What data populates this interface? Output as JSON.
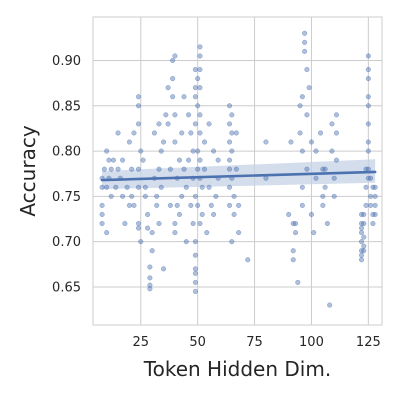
{
  "chart_data": {
    "type": "scatter",
    "xlabel": "Token Hidden Dim.",
    "ylabel": "Accuracy",
    "xlim": [
      4,
      131
    ],
    "ylim": [
      0.608,
      0.948
    ],
    "xticks": [
      25,
      50,
      75,
      100,
      125
    ],
    "yticks": [
      0.65,
      0.7,
      0.75,
      0.8,
      0.85,
      0.9
    ],
    "grid": true,
    "colors": {
      "points": "#4c72b0",
      "line": "#4c72b0",
      "band": "#c5d2e6",
      "grid": "#cccccc"
    },
    "regression": {
      "x": [
        8,
        128
      ],
      "y": [
        0.768,
        0.777
      ],
      "ci_low": [
        0.758,
        0.765
      ],
      "ci_high": [
        0.778,
        0.791
      ]
    },
    "points": [
      [
        8,
        0.73
      ],
      [
        8,
        0.72
      ],
      [
        8,
        0.76
      ],
      [
        8,
        0.77
      ],
      [
        8,
        0.74
      ],
      [
        9,
        0.78
      ],
      [
        10,
        0.8
      ],
      [
        10,
        0.71
      ],
      [
        10,
        0.76
      ],
      [
        11,
        0.79
      ],
      [
        11,
        0.77
      ],
      [
        12,
        0.75
      ],
      [
        12,
        0.78
      ],
      [
        13,
        0.79
      ],
      [
        14,
        0.76
      ],
      [
        15,
        0.82
      ],
      [
        15,
        0.78
      ],
      [
        16,
        0.77
      ],
      [
        17,
        0.75
      ],
      [
        17,
        0.79
      ],
      [
        18,
        0.72
      ],
      [
        19,
        0.76
      ],
      [
        20,
        0.74
      ],
      [
        20,
        0.81
      ],
      [
        21,
        0.78
      ],
      [
        21,
        0.75
      ],
      [
        22,
        0.82
      ],
      [
        22,
        0.74
      ],
      [
        24,
        0.86
      ],
      [
        24,
        0.85
      ],
      [
        24,
        0.83
      ],
      [
        24,
        0.78
      ],
      [
        24,
        0.76
      ],
      [
        24,
        0.72
      ],
      [
        24,
        0.715
      ],
      [
        25,
        0.7
      ],
      [
        25,
        0.8
      ],
      [
        26,
        0.79
      ],
      [
        27,
        0.76
      ],
      [
        27,
        0.75
      ],
      [
        28,
        0.73
      ],
      [
        28,
        0.715
      ],
      [
        29,
        0.672
      ],
      [
        29,
        0.66
      ],
      [
        29,
        0.652
      ],
      [
        29,
        0.648
      ],
      [
        30,
        0.69
      ],
      [
        30,
        0.71
      ],
      [
        31,
        0.82
      ],
      [
        31,
        0.77
      ],
      [
        32,
        0.75
      ],
      [
        32,
        0.74
      ],
      [
        33,
        0.83
      ],
      [
        33,
        0.78
      ],
      [
        33,
        0.72
      ],
      [
        34,
        0.8
      ],
      [
        34,
        0.76
      ],
      [
        35,
        0.67
      ],
      [
        35,
        0.81
      ],
      [
        36,
        0.84
      ],
      [
        37,
        0.87
      ],
      [
        37,
        0.83
      ],
      [
        38,
        0.78
      ],
      [
        38,
        0.74
      ],
      [
        39,
        0.9
      ],
      [
        39,
        0.88
      ],
      [
        39,
        0.86
      ],
      [
        40,
        0.905
      ],
      [
        40,
        0.84
      ],
      [
        40,
        0.81
      ],
      [
        40,
        0.72
      ],
      [
        40,
        0.71
      ],
      [
        41,
        0.77
      ],
      [
        41,
        0.74
      ],
      [
        42,
        0.79
      ],
      [
        42,
        0.73
      ],
      [
        43,
        0.82
      ],
      [
        43,
        0.75
      ],
      [
        44,
        0.86
      ],
      [
        44,
        0.78
      ],
      [
        45,
        0.7
      ],
      [
        45,
        0.76
      ],
      [
        46,
        0.84
      ],
      [
        46,
        0.79
      ],
      [
        47,
        0.82
      ],
      [
        47,
        0.74
      ],
      [
        48,
        0.8
      ],
      [
        48,
        0.77
      ],
      [
        48,
        0.72
      ],
      [
        49,
        0.89
      ],
      [
        49,
        0.87
      ],
      [
        49,
        0.86
      ],
      [
        49,
        0.83
      ],
      [
        49,
        0.75
      ],
      [
        49,
        0.7
      ],
      [
        49,
        0.685
      ],
      [
        49,
        0.67
      ],
      [
        49,
        0.665
      ],
      [
        49,
        0.655
      ],
      [
        49,
        0.645
      ],
      [
        50,
        0.88
      ],
      [
        50,
        0.85
      ],
      [
        50,
        0.8
      ],
      [
        50,
        0.78
      ],
      [
        50,
        0.74
      ],
      [
        51,
        0.915
      ],
      [
        51,
        0.905
      ],
      [
        51,
        0.89
      ],
      [
        51,
        0.87
      ],
      [
        51,
        0.84
      ],
      [
        51,
        0.82
      ],
      [
        51,
        0.79
      ],
      [
        51,
        0.77
      ],
      [
        51,
        0.72
      ],
      [
        52,
        0.76
      ],
      [
        52,
        0.73
      ],
      [
        53,
        0.81
      ],
      [
        53,
        0.78
      ],
      [
        54,
        0.71
      ],
      [
        55,
        0.83
      ],
      [
        55,
        0.76
      ],
      [
        56,
        0.74
      ],
      [
        57,
        0.8
      ],
      [
        57,
        0.73
      ],
      [
        58,
        0.75
      ],
      [
        59,
        0.79
      ],
      [
        59,
        0.77
      ],
      [
        64,
        0.85
      ],
      [
        64,
        0.83
      ],
      [
        64,
        0.81
      ],
      [
        64,
        0.79
      ],
      [
        64,
        0.78
      ],
      [
        64,
        0.76
      ],
      [
        64,
        0.74
      ],
      [
        65,
        0.84
      ],
      [
        65,
        0.82
      ],
      [
        65,
        0.8
      ],
      [
        65,
        0.77
      ],
      [
        65,
        0.7
      ],
      [
        66,
        0.75
      ],
      [
        66,
        0.73
      ],
      [
        67,
        0.82
      ],
      [
        67,
        0.78
      ],
      [
        68,
        0.74
      ],
      [
        68,
        0.71
      ],
      [
        72,
        0.68
      ],
      [
        80,
        0.81
      ],
      [
        80,
        0.77
      ],
      [
        90,
        0.73
      ],
      [
        91,
        0.81
      ],
      [
        92,
        0.72
      ],
      [
        92,
        0.69
      ],
      [
        92,
        0.68
      ],
      [
        93,
        0.72
      ],
      [
        93,
        0.71
      ],
      [
        94,
        0.655
      ],
      [
        95,
        0.85
      ],
      [
        95,
        0.82
      ],
      [
        96,
        0.86
      ],
      [
        96,
        0.8
      ],
      [
        96,
        0.76
      ],
      [
        96,
        0.74
      ],
      [
        97,
        0.93
      ],
      [
        97,
        0.92
      ],
      [
        97,
        0.91
      ],
      [
        98,
        0.89
      ],
      [
        98,
        0.84
      ],
      [
        98,
        0.78
      ],
      [
        99,
        0.87
      ],
      [
        100,
        0.81
      ],
      [
        100,
        0.73
      ],
      [
        101,
        0.71
      ],
      [
        102,
        0.8
      ],
      [
        102,
        0.77
      ],
      [
        104,
        0.82
      ],
      [
        105,
        0.78
      ],
      [
        105,
        0.75
      ],
      [
        105,
        0.74
      ],
      [
        106,
        0.78
      ],
      [
        106,
        0.76
      ],
      [
        107,
        0.72
      ],
      [
        108,
        0.63
      ],
      [
        109,
        0.83
      ],
      [
        109,
        0.8
      ],
      [
        110,
        0.77
      ],
      [
        110,
        0.75
      ],
      [
        111,
        0.84
      ],
      [
        111,
        0.82
      ],
      [
        111,
        0.79
      ],
      [
        122,
        0.73
      ],
      [
        122,
        0.72
      ],
      [
        122,
        0.715
      ],
      [
        122,
        0.71
      ],
      [
        122,
        0.7
      ],
      [
        122,
        0.69
      ],
      [
        122,
        0.685
      ],
      [
        122,
        0.68
      ],
      [
        123,
        0.73
      ],
      [
        123,
        0.72
      ],
      [
        123,
        0.705
      ],
      [
        123,
        0.695
      ],
      [
        123,
        0.69
      ],
      [
        124,
        0.78
      ],
      [
        124,
        0.76
      ],
      [
        124,
        0.74
      ],
      [
        125,
        0.905
      ],
      [
        125,
        0.89
      ],
      [
        125,
        0.88
      ],
      [
        125,
        0.86
      ],
      [
        125,
        0.85
      ],
      [
        125,
        0.83
      ],
      [
        125,
        0.81
      ],
      [
        125,
        0.8
      ],
      [
        125,
        0.78
      ],
      [
        125,
        0.77
      ],
      [
        126,
        0.77
      ],
      [
        126,
        0.75
      ],
      [
        126,
        0.74
      ],
      [
        127,
        0.76
      ],
      [
        127,
        0.73
      ],
      [
        127,
        0.72
      ],
      [
        128,
        0.75
      ],
      [
        128,
        0.74
      ],
      [
        128,
        0.73
      ],
      [
        128,
        0.76
      ]
    ]
  }
}
